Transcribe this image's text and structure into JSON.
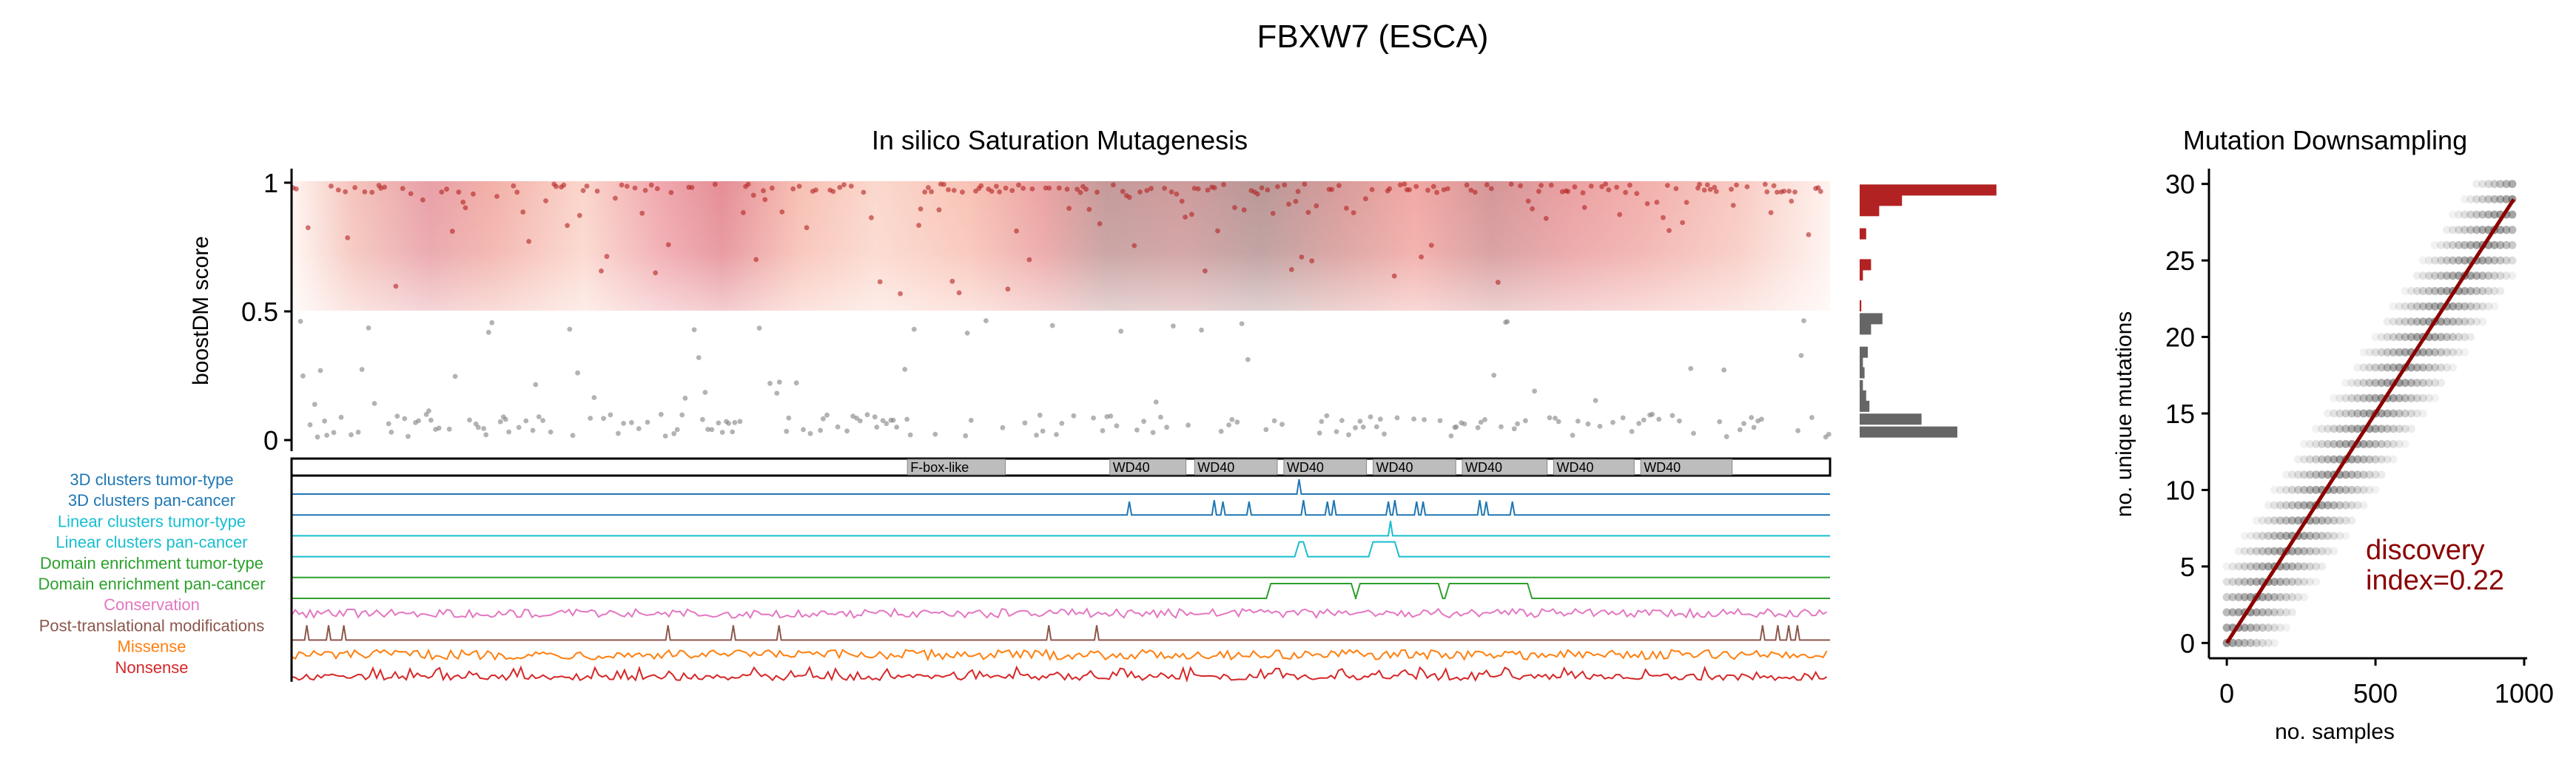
{
  "figure": {
    "title": "FBXW7 (ESCA)"
  },
  "chart_data": [
    {
      "type": "scatter",
      "title": "In silico Saturation Mutagenesis",
      "ylabel": "boostDM score",
      "ylim": [
        0,
        1
      ],
      "yticks": [
        {
          "value": 0,
          "label": "0"
        },
        {
          "value": 0.5,
          "label": "0.5"
        },
        {
          "value": 1,
          "label": "1"
        }
      ],
      "threshold": 0.5,
      "driver_color": "#b22222",
      "passenger_color": "#808080",
      "protein_length": 707,
      "domains": [
        {
          "label": "F-box-like",
          "start": 283,
          "end": 328
        },
        {
          "label": "WD40",
          "start": 376,
          "end": 411
        },
        {
          "label": "WD40",
          "start": 415,
          "end": 453
        },
        {
          "label": "WD40",
          "start": 456,
          "end": 494
        },
        {
          "label": "WD40",
          "start": 497,
          "end": 535
        },
        {
          "label": "WD40",
          "start": 538,
          "end": 577
        },
        {
          "label": "WD40",
          "start": 580,
          "end": 617
        },
        {
          "label": "WD40",
          "start": 620,
          "end": 662
        }
      ],
      "histogram": {
        "driver_bins": [
          {
            "y": 0.97,
            "count": 84
          },
          {
            "y": 0.93,
            "count": 26
          },
          {
            "y": 0.89,
            "count": 12
          },
          {
            "y": 0.8,
            "count": 4
          },
          {
            "y": 0.68,
            "count": 7
          },
          {
            "y": 0.64,
            "count": 2
          },
          {
            "y": 0.52,
            "count": 1
          }
        ],
        "passenger_bins": [
          {
            "y": 0.47,
            "count": 14
          },
          {
            "y": 0.43,
            "count": 7
          },
          {
            "y": 0.34,
            "count": 5
          },
          {
            "y": 0.3,
            "count": 2
          },
          {
            "y": 0.26,
            "count": 3
          },
          {
            "y": 0.21,
            "count": 2
          },
          {
            "y": 0.17,
            "count": 4
          },
          {
            "y": 0.13,
            "count": 6
          },
          {
            "y": 0.08,
            "count": 38
          },
          {
            "y": 0.03,
            "count": 60
          }
        ]
      },
      "tracks": [
        {
          "name": "3D clusters tumor-type",
          "color": "#1f77b4",
          "peaks": [
            [
              463,
              1.0
            ]
          ]
        },
        {
          "name": "3D clusters pan-cancer",
          "color": "#1f77b4",
          "peaks": [
            [
              385,
              0.9
            ],
            [
              424,
              1.0
            ],
            [
              428,
              0.9
            ],
            [
              440,
              0.9
            ],
            [
              465,
              1.0
            ],
            [
              476,
              0.9
            ],
            [
              479,
              1.0
            ],
            [
              504,
              0.9
            ],
            [
              507,
              1.0
            ],
            [
              517,
              0.9
            ],
            [
              520,
              0.9
            ],
            [
              546,
              1.0
            ],
            [
              549,
              0.9
            ],
            [
              561,
              0.9
            ]
          ]
        },
        {
          "name": "Linear clusters tumor-type",
          "color": "#17becf",
          "peaks": [
            [
              505,
              1.0
            ]
          ]
        },
        {
          "name": "Linear clusters pan-cancer",
          "color": "#17becf",
          "plateaus": [
            [
              462,
              466
            ],
            [
              496,
              508
            ]
          ]
        },
        {
          "name": "Domain enrichment tumor-type",
          "color": "#2ca02c",
          "plateaus": []
        },
        {
          "name": "Domain enrichment pan-cancer",
          "color": "#2ca02c",
          "plateaus": [
            [
              449,
              488
            ],
            [
              490,
              528
            ],
            [
              531,
              569
            ]
          ]
        },
        {
          "name": "Conservation",
          "color": "#e377c2",
          "noise": true
        },
        {
          "name": "Post-translational modifications",
          "color": "#8c564b",
          "peaks": [
            [
              7,
              1.0
            ],
            [
              17,
              1.0
            ],
            [
              24,
              1.0
            ],
            [
              173,
              1.0
            ],
            [
              203,
              1.0
            ],
            [
              224,
              1.0
            ],
            [
              348,
              1.0
            ],
            [
              370,
              1.0
            ],
            [
              676,
              1.0
            ],
            [
              683,
              1.0
            ],
            [
              688,
              1.0
            ],
            [
              692,
              1.0
            ]
          ]
        },
        {
          "name": "Missense",
          "color": "#ff7f0e",
          "noise": true
        },
        {
          "name": "Nonsense",
          "color": "#d62728",
          "noise": true
        }
      ]
    },
    {
      "type": "scatter",
      "title": "Mutation Downsampling",
      "xlabel": "no. samples",
      "ylabel": "no. unique mutations",
      "xlim": [
        -60,
        1010
      ],
      "ylim": [
        -1,
        31
      ],
      "xticks": [
        {
          "value": 0,
          "label": "0"
        },
        {
          "value": 500,
          "label": "500"
        },
        {
          "value": 1000,
          "label": "1000"
        }
      ],
      "yticks": [
        {
          "value": 0,
          "label": "0"
        },
        {
          "value": 5,
          "label": "5"
        },
        {
          "value": 10,
          "label": "10"
        },
        {
          "value": 15,
          "label": "15"
        },
        {
          "value": 20,
          "label": "20"
        },
        {
          "value": 25,
          "label": "25"
        },
        {
          "value": 30,
          "label": "30"
        }
      ],
      "fit_line": {
        "x": [
          0,
          965
        ],
        "y": [
          0,
          29
        ],
        "color": "#8b0000"
      },
      "annotation": {
        "line1": "discovery",
        "line2": "index=0.22",
        "color": "#8b0000"
      }
    }
  ]
}
